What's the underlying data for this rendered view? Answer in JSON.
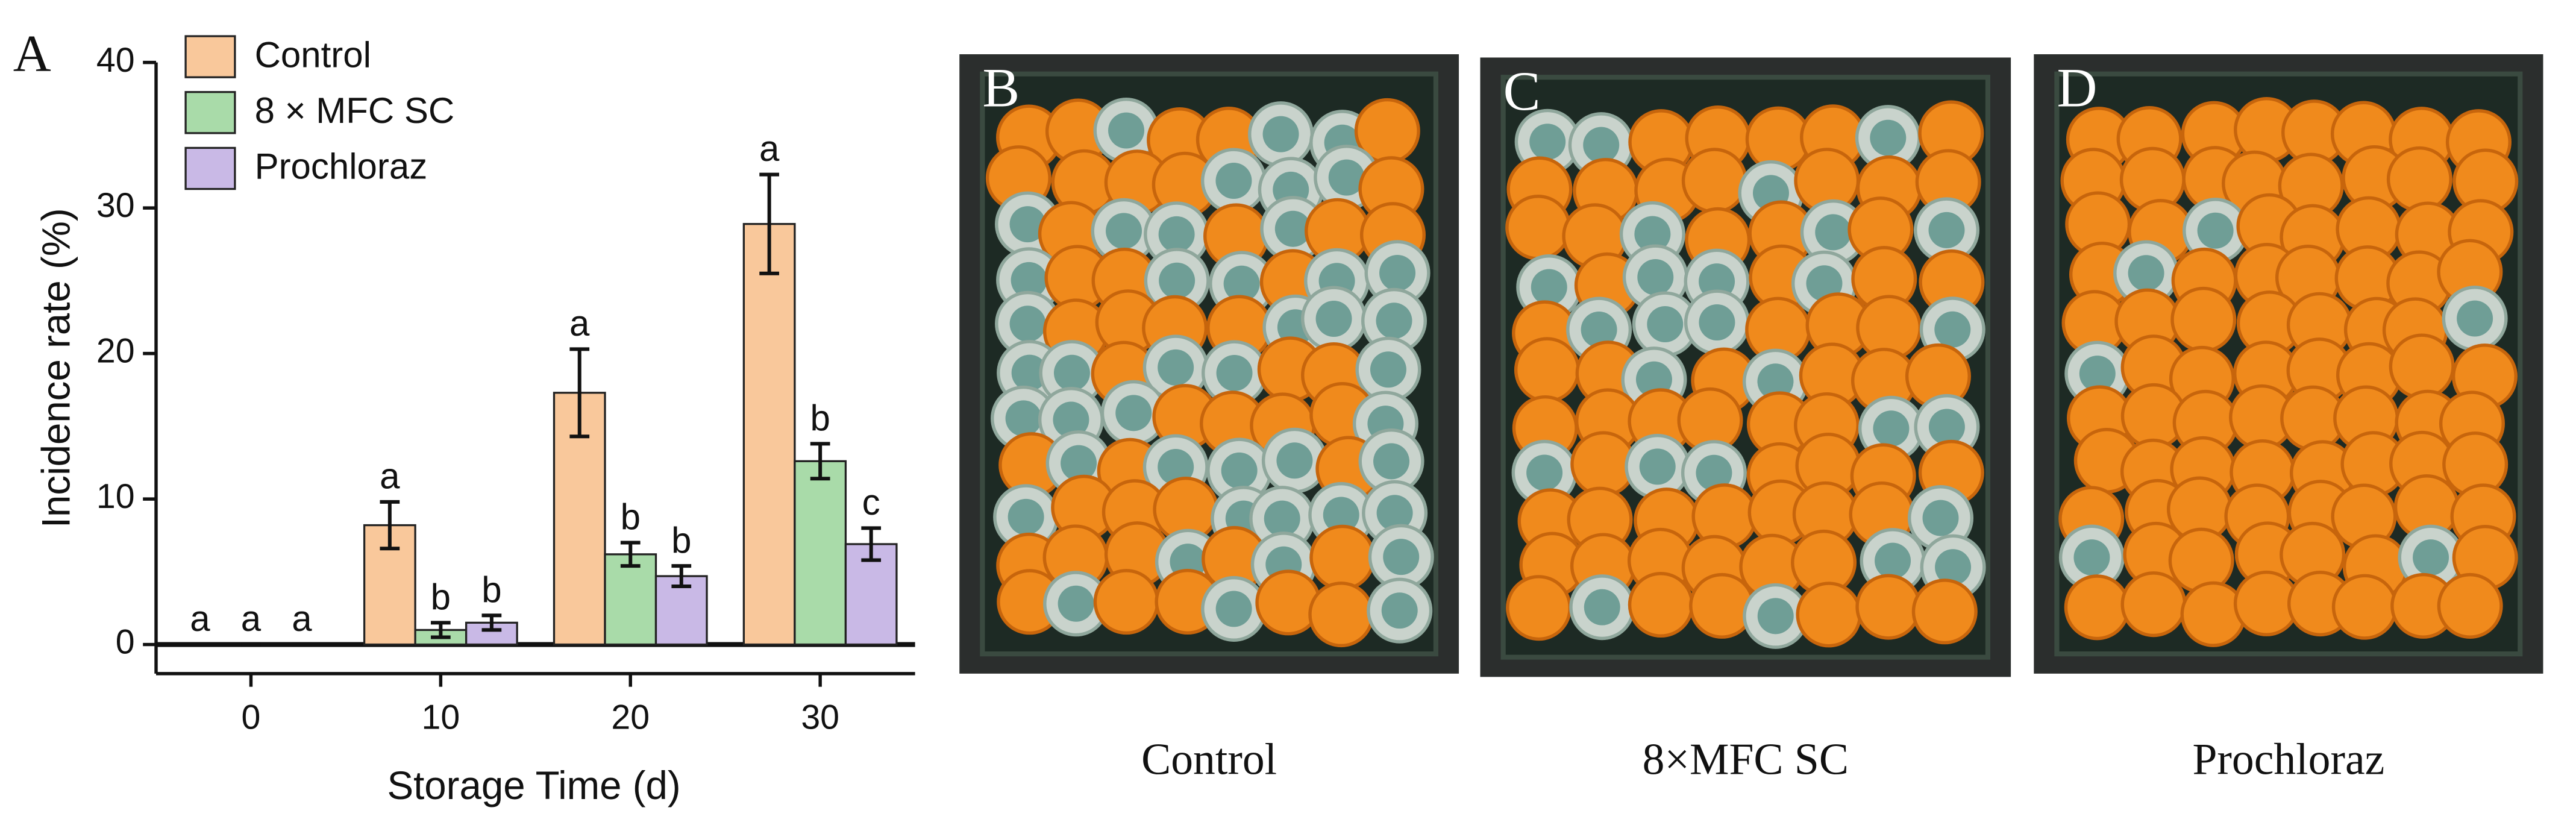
{
  "chart_data": {
    "type": "bar",
    "panel_label": "A",
    "x_label": "Storage Time (d)",
    "y_label": "Incidence rate (%)",
    "categories": [
      "0",
      "10",
      "20",
      "30"
    ],
    "series": [
      {
        "name": "Control",
        "color": "#f9c89b",
        "values": [
          0,
          8.2,
          17.3,
          28.9
        ],
        "errors": [
          0,
          1.6,
          3.0,
          3.4
        ],
        "letters": [
          "a",
          "a",
          "a",
          "a"
        ]
      },
      {
        "name": "8 × MFC SC",
        "color": "#a9dba9",
        "values": [
          0,
          1.0,
          6.2,
          12.6
        ],
        "errors": [
          0,
          0.5,
          0.8,
          1.2
        ],
        "letters": [
          "a",
          "b",
          "b",
          "b"
        ]
      },
      {
        "name": "Prochloraz",
        "color": "#c9b9e6",
        "values": [
          0,
          1.5,
          4.7,
          6.9
        ],
        "errors": [
          0,
          0.5,
          0.7,
          1.1
        ],
        "letters": [
          "a",
          "b",
          "b",
          "c"
        ]
      }
    ],
    "ylim": [
      -2,
      40
    ],
    "yticks": [
      0,
      10,
      20,
      30,
      40
    ],
    "legend": "upper-left",
    "grid": false
  },
  "photos": [
    {
      "label": "B",
      "caption": "Control"
    },
    {
      "label": "C",
      "caption": "8×MFC SC"
    },
    {
      "label": "D",
      "caption": "Prochloraz"
    }
  ]
}
